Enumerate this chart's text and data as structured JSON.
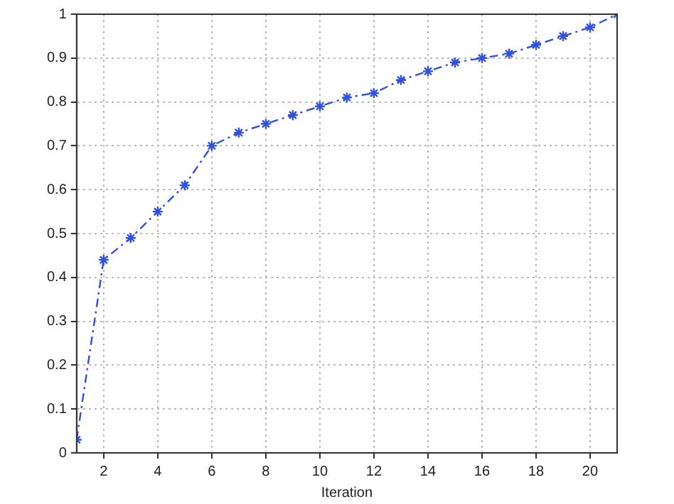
{
  "chart_data": {
    "type": "line",
    "xlabel": "Iteration",
    "x": [
      1,
      2,
      3,
      4,
      5,
      6,
      7,
      8,
      9,
      10,
      11,
      12,
      13,
      14,
      15,
      16,
      17,
      18,
      19,
      20,
      21
    ],
    "series": [
      {
        "color": "#3050e0",
        "values": [
          0.03,
          0.44,
          0.49,
          0.55,
          0.61,
          0.7,
          0.73,
          0.75,
          0.77,
          0.79,
          0.81,
          0.82,
          0.85,
          0.87,
          0.89,
          0.9,
          0.91,
          0.93,
          0.95,
          0.97,
          1.0
        ]
      }
    ],
    "xlim": [
      1,
      21
    ],
    "xticks": [
      2,
      4,
      6,
      8,
      10,
      12,
      14,
      16,
      18,
      20
    ],
    "ylim": [
      0,
      1
    ],
    "yticks": [
      0,
      0.1,
      0.2,
      0.3,
      0.4,
      0.5,
      0.6,
      0.7,
      0.8,
      0.9,
      1
    ],
    "grid": true,
    "marker": "cross",
    "line_style": "dashed",
    "legend": false
  }
}
